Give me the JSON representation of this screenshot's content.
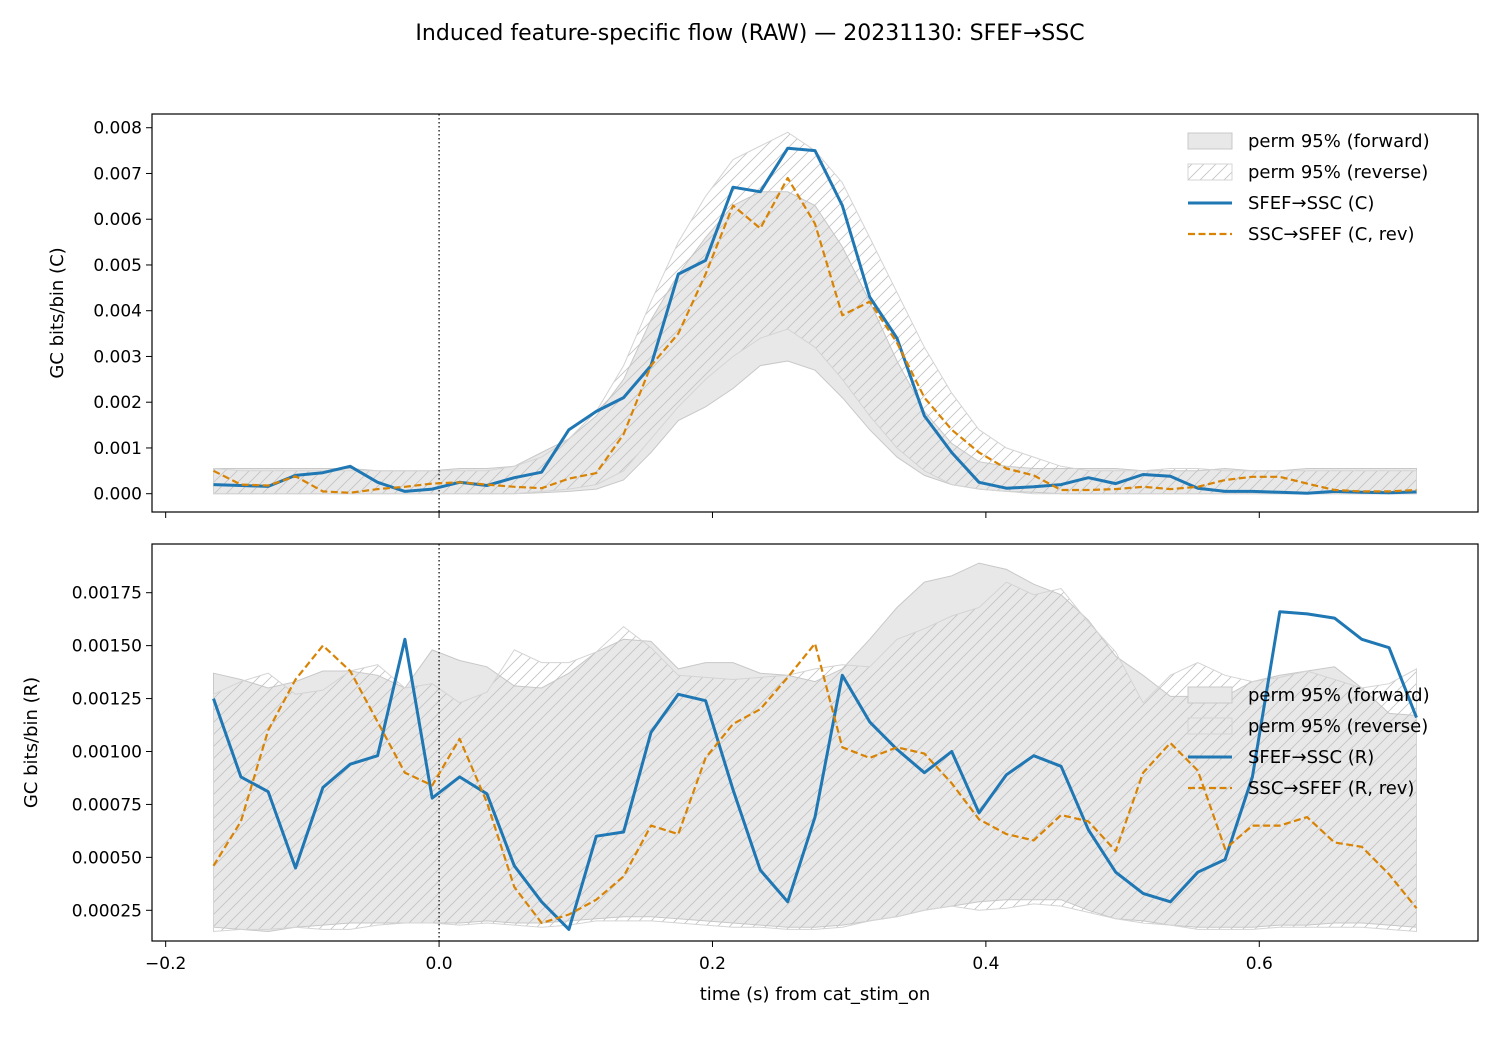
{
  "figure": {
    "title": "Induced feature-specific flow (RAW) — 20231130: SFEF→SSC",
    "xlabel": "time (s) from cat_stim_on"
  },
  "colors": {
    "forward": "#1f77b4",
    "reverse": "#d88304",
    "band_fill": "#e8e8e8",
    "band_edge": "#c8c8c8",
    "hatch": "#c0c0c0"
  },
  "chart_data": [
    {
      "type": "line",
      "panel": "top",
      "ylabel": "GC bits/bin (C)",
      "xlim": [
        -0.21,
        0.76
      ],
      "ylim": [
        -0.0004,
        0.0083
      ],
      "xticks": [
        -0.2,
        0.0,
        0.2,
        0.4,
        0.6
      ],
      "xtick_labels": [
        "−0.2",
        "0.0",
        "0.2",
        "0.4",
        "0.6"
      ],
      "yticks": [
        0,
        0.001,
        0.002,
        0.003,
        0.004,
        0.005,
        0.006,
        0.007,
        0.008
      ],
      "ytick_labels": [
        "0.000",
        "0.001",
        "0.002",
        "0.003",
        "0.004",
        "0.005",
        "0.006",
        "0.007",
        "0.008"
      ],
      "vline_x": 0,
      "legend": {
        "placement": "upper-right",
        "entries": [
          "perm 95% (forward)",
          "perm 95% (reverse)",
          "SFEF→SSC (C)",
          "SSC→SFEF (C, rev)"
        ]
      },
      "x": [
        -0.165,
        -0.145,
        -0.125,
        -0.105,
        -0.085,
        -0.065,
        -0.045,
        -0.025,
        -0.005,
        0.015,
        0.035,
        0.055,
        0.075,
        0.095,
        0.115,
        0.135,
        0.155,
        0.175,
        0.195,
        0.215,
        0.235,
        0.255,
        0.275,
        0.295,
        0.315,
        0.335,
        0.355,
        0.375,
        0.395,
        0.415,
        0.435,
        0.455,
        0.475,
        0.495,
        0.515,
        0.535,
        0.555,
        0.575,
        0.595,
        0.615,
        0.635,
        0.655,
        0.675,
        0.695,
        0.715
      ],
      "band_forward": {
        "lo": [
          0,
          0,
          0,
          0,
          0,
          0,
          0,
          0,
          0,
          0,
          0,
          0,
          2e-05,
          5e-05,
          0.0001,
          0.0003,
          0.0009,
          0.0016,
          0.0019,
          0.0023,
          0.0028,
          0.0029,
          0.0027,
          0.0021,
          0.0014,
          0.0008,
          0.0004,
          0.0002,
          0.0001,
          5e-05,
          3e-05,
          0,
          0,
          0,
          0,
          0,
          0,
          0,
          0,
          0,
          0,
          0,
          0,
          0,
          0
        ],
        "hi": [
          0.00055,
          0.00055,
          0.00055,
          0.00055,
          0.00055,
          0.00055,
          0.0005,
          0.0005,
          0.0005,
          0.00055,
          0.00055,
          0.0006,
          0.0009,
          0.0012,
          0.0017,
          0.0025,
          0.0038,
          0.0048,
          0.0056,
          0.0063,
          0.0066,
          0.0066,
          0.0063,
          0.0054,
          0.0042,
          0.0029,
          0.0018,
          0.0011,
          0.0007,
          0.0006,
          0.00055,
          0.00055,
          0.00055,
          0.00055,
          0.0005,
          0.0005,
          0.0005,
          0.00055,
          0.0005,
          0.0005,
          0.00055,
          0.00055,
          0.00055,
          0.00055,
          0.00055
        ]
      },
      "band_reverse": {
        "lo": [
          0,
          0,
          0,
          0,
          0,
          0,
          0,
          0,
          0,
          0,
          0,
          0,
          5e-05,
          0.0001,
          0.0002,
          0.0005,
          0.0012,
          0.0019,
          0.0025,
          0.003,
          0.0034,
          0.0036,
          0.0032,
          0.0025,
          0.0017,
          0.001,
          0.0005,
          0.0002,
          0.0001,
          5e-05,
          0,
          0,
          0,
          0,
          0,
          0,
          0,
          0,
          0,
          0,
          0,
          0,
          0,
          0,
          0
        ],
        "hi": [
          0.00055,
          0.0005,
          0.0005,
          0.0005,
          0.0005,
          0.0005,
          0.0005,
          0.0005,
          0.0005,
          0.0005,
          0.0005,
          0.0006,
          0.0008,
          0.0012,
          0.0018,
          0.0028,
          0.0042,
          0.0055,
          0.0065,
          0.0073,
          0.0076,
          0.0079,
          0.0075,
          0.0068,
          0.0056,
          0.0044,
          0.0032,
          0.0022,
          0.0014,
          0.001,
          0.0008,
          0.0006,
          0.0005,
          0.0005,
          0.0005,
          0.00055,
          0.00055,
          0.0005,
          0.0005,
          0.0005,
          0.0005,
          0.0005,
          0.0005,
          0.0005,
          0.0005
        ]
      },
      "series": [
        {
          "name": "SFEF→SSC (C)",
          "style": "solid",
          "values": [
            0.0002,
            0.00018,
            0.00016,
            0.0004,
            0.00046,
            0.0006,
            0.00025,
            5e-05,
            0.0001,
            0.00025,
            0.00018,
            0.00035,
            0.00047,
            0.0014,
            0.0018,
            0.0021,
            0.0028,
            0.0048,
            0.0051,
            0.0067,
            0.0066,
            0.00755,
            0.0075,
            0.0063,
            0.0043,
            0.0034,
            0.0017,
            0.0009,
            0.00025,
            0.00012,
            0.00015,
            0.0002,
            0.00035,
            0.00022,
            0.00042,
            0.00038,
            0.00012,
            5e-05,
            5e-05,
            3e-05,
            1e-05,
            5e-05,
            3e-05,
            2e-05,
            4e-05
          ]
        },
        {
          "name": "SSC→SFEF (C, rev)",
          "style": "dashed",
          "values": [
            0.0005,
            0.0002,
            0.00018,
            0.00038,
            5e-05,
            2e-05,
            0.0001,
            0.00015,
            0.00022,
            0.00025,
            0.0002,
            0.00015,
            0.00012,
            0.00033,
            0.00045,
            0.0013,
            0.0028,
            0.0035,
            0.0048,
            0.0063,
            0.0058,
            0.0069,
            0.0059,
            0.0039,
            0.0042,
            0.0033,
            0.0021,
            0.0014,
            0.0009,
            0.00055,
            0.0004,
            8e-05,
            8e-05,
            0.0001,
            0.00015,
            0.0001,
            0.00015,
            0.0003,
            0.00037,
            0.00037,
            0.00022,
            8e-05,
            5e-05,
            5e-05,
            8e-05
          ]
        }
      ]
    },
    {
      "type": "line",
      "panel": "bottom",
      "ylabel": "GC bits/bin (R)",
      "xlim": [
        -0.21,
        0.76
      ],
      "ylim": [
        0.000105,
        0.00198
      ],
      "xticks": [
        -0.2,
        0.0,
        0.2,
        0.4,
        0.6
      ],
      "xtick_labels": [
        "−0.2",
        "0.0",
        "0.2",
        "0.4",
        "0.6"
      ],
      "yticks": [
        0.00025,
        0.0005,
        0.00075,
        0.001,
        0.00125,
        0.0015,
        0.00175
      ],
      "ytick_labels": [
        "0.00025",
        "0.00050",
        "0.00075",
        "0.00100",
        "0.00125",
        "0.00150",
        "0.00175"
      ],
      "vline_x": 0,
      "legend": {
        "placement": "center-right",
        "entries": [
          "perm 95% (forward)",
          "perm 95% (reverse)",
          "SFEF→SSC (R)",
          "SSC→SFEF (R, rev)"
        ]
      },
      "x": [
        -0.165,
        -0.145,
        -0.125,
        -0.105,
        -0.085,
        -0.065,
        -0.045,
        -0.025,
        -0.005,
        0.015,
        0.035,
        0.055,
        0.075,
        0.095,
        0.115,
        0.135,
        0.155,
        0.175,
        0.195,
        0.215,
        0.235,
        0.255,
        0.275,
        0.295,
        0.315,
        0.335,
        0.355,
        0.375,
        0.395,
        0.415,
        0.435,
        0.455,
        0.475,
        0.495,
        0.515,
        0.535,
        0.555,
        0.575,
        0.595,
        0.615,
        0.635,
        0.655,
        0.675,
        0.695,
        0.715
      ],
      "band_forward": {
        "lo": [
          0.00017,
          0.00016,
          0.00015,
          0.00017,
          0.00018,
          0.00019,
          0.00019,
          0.00019,
          0.00019,
          0.00019,
          0.0002,
          0.00019,
          0.00019,
          0.0002,
          0.00021,
          0.00022,
          0.00022,
          0.00021,
          0.0002,
          0.00019,
          0.00018,
          0.00017,
          0.00017,
          0.00018,
          0.0002,
          0.00022,
          0.00025,
          0.00027,
          0.00029,
          0.0003,
          0.0003,
          0.0003,
          0.00025,
          0.00021,
          0.0002,
          0.00018,
          0.00017,
          0.00017,
          0.00017,
          0.00018,
          0.00018,
          0.00019,
          0.00019,
          0.00018,
          0.00017
        ],
        "hi": [
          0.00137,
          0.00134,
          0.0013,
          0.00133,
          0.00138,
          0.00138,
          0.00136,
          0.0013,
          0.00148,
          0.00143,
          0.0014,
          0.00131,
          0.0013,
          0.00137,
          0.00147,
          0.00153,
          0.00152,
          0.00139,
          0.00142,
          0.00142,
          0.00137,
          0.00136,
          0.00133,
          0.00139,
          0.00153,
          0.00168,
          0.0018,
          0.00183,
          0.00189,
          0.00186,
          0.00179,
          0.00174,
          0.00162,
          0.00145,
          0.00136,
          0.00126,
          0.00126,
          0.00126,
          0.00133,
          0.00136,
          0.00138,
          0.0014,
          0.0013,
          0.00118,
          0.00117
        ]
      },
      "band_reverse": {
        "lo": [
          0.00015,
          0.00016,
          0.00016,
          0.00017,
          0.00016,
          0.00016,
          0.00018,
          0.00019,
          0.00019,
          0.00018,
          0.00019,
          0.00018,
          0.00017,
          0.00018,
          0.0002,
          0.0002,
          0.0002,
          0.00019,
          0.00018,
          0.00017,
          0.00017,
          0.00016,
          0.00016,
          0.00017,
          0.0002,
          0.00022,
          0.00025,
          0.00027,
          0.00025,
          0.00026,
          0.00028,
          0.00027,
          0.00024,
          0.00021,
          0.00019,
          0.00018,
          0.00016,
          0.00016,
          0.00016,
          0.00017,
          0.00017,
          0.00017,
          0.00017,
          0.00016,
          0.00015
        ],
        "hi": [
          0.00127,
          0.00133,
          0.00137,
          0.00127,
          0.00129,
          0.00138,
          0.00141,
          0.0013,
          0.00132,
          0.00123,
          0.00128,
          0.00148,
          0.00142,
          0.00142,
          0.00147,
          0.00159,
          0.00149,
          0.00136,
          0.00135,
          0.00134,
          0.00135,
          0.00136,
          0.00139,
          0.00141,
          0.0014,
          0.00153,
          0.00158,
          0.00164,
          0.00168,
          0.0018,
          0.00174,
          0.00177,
          0.00161,
          0.00147,
          0.00123,
          0.00136,
          0.00142,
          0.00136,
          0.00133,
          0.00135,
          0.00138,
          0.00134,
          0.0013,
          0.00132,
          0.00139
        ]
      },
      "series": [
        {
          "name": "SFEF→SSC (R)",
          "style": "solid",
          "values": [
            0.00125,
            0.00088,
            0.00081,
            0.00045,
            0.00083,
            0.00094,
            0.00098,
            0.00153,
            0.00078,
            0.00088,
            0.0008,
            0.00046,
            0.00029,
            0.00016,
            0.0006,
            0.00062,
            0.00109,
            0.00127,
            0.00124,
            0.00082,
            0.00044,
            0.00029,
            0.00069,
            0.00136,
            0.00114,
            0.00101,
            0.0009,
            0.001,
            0.00071,
            0.00089,
            0.00098,
            0.00093,
            0.00063,
            0.00043,
            0.00033,
            0.00029,
            0.00043,
            0.00049,
            0.00088,
            0.00166,
            0.00165,
            0.00163,
            0.00153,
            0.00149,
            0.00116
          ]
        },
        {
          "name": "SSC→SFEF (R, rev)",
          "style": "dashed",
          "values": [
            0.00046,
            0.00067,
            0.0011,
            0.00134,
            0.0015,
            0.00138,
            0.00114,
            0.0009,
            0.00084,
            0.00106,
            0.00076,
            0.00036,
            0.00019,
            0.00023,
            0.0003,
            0.00041,
            0.00065,
            0.00061,
            0.00097,
            0.00113,
            0.0012,
            0.00135,
            0.00151,
            0.00102,
            0.00097,
            0.00102,
            0.00099,
            0.00085,
            0.00068,
            0.00061,
            0.00058,
            0.0007,
            0.00067,
            0.00053,
            0.0009,
            0.00104,
            0.00091,
            0.00054,
            0.00065,
            0.00065,
            0.00069,
            0.00057,
            0.00055,
            0.00042,
            0.00026
          ]
        }
      ]
    }
  ]
}
